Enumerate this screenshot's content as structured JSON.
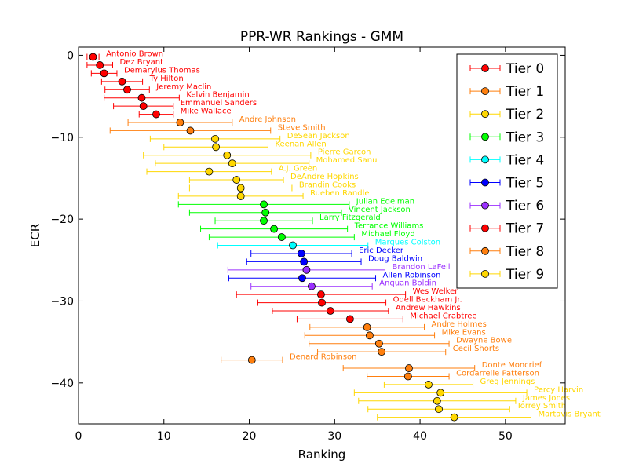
{
  "chart_data": {
    "type": "scatter",
    "title": "PPR-WR Rankings - GMM",
    "xlabel": "Ranking",
    "ylabel": "ECR",
    "xlim": [
      0,
      57
    ],
    "ylim": [
      -45,
      1
    ],
    "x_ticks": [
      0,
      10,
      20,
      30,
      40,
      50
    ],
    "x_tick_labels": [
      "0",
      "10",
      "20",
      "30",
      "40",
      "50"
    ],
    "y_ticks": [
      0,
      -10,
      -20,
      -30,
      -40
    ],
    "y_tick_labels": [
      "0",
      "−10",
      "−20",
      "−30",
      "−40"
    ],
    "grid": false,
    "legend_position": "top-right",
    "tiers": [
      {
        "name": "Tier 0",
        "color": "#ff0000"
      },
      {
        "name": "Tier 1",
        "color": "#ff7f0e"
      },
      {
        "name": "Tier 2",
        "color": "#ffd700"
      },
      {
        "name": "Tier 3",
        "color": "#00ff00"
      },
      {
        "name": "Tier 4",
        "color": "#00ffff"
      },
      {
        "name": "Tier 5",
        "color": "#0000ff"
      },
      {
        "name": "Tier 6",
        "color": "#9b30ff"
      },
      {
        "name": "Tier 7",
        "color": "#ff0000"
      },
      {
        "name": "Tier 8",
        "color": "#ff7f0e"
      },
      {
        "name": "Tier 9",
        "color": "#ffd700"
      }
    ],
    "players": [
      {
        "name": "Antonio Brown",
        "tier": 0,
        "x": 1.7,
        "xmin": 1.0,
        "xmax": 2.4,
        "y": -0.2
      },
      {
        "name": "Dez Bryant",
        "tier": 0,
        "x": 2.5,
        "xmin": 1.0,
        "xmax": 4.0,
        "y": -1.2
      },
      {
        "name": "Demaryius Thomas",
        "tier": 0,
        "x": 3.0,
        "xmin": 1.5,
        "xmax": 4.5,
        "y": -2.2
      },
      {
        "name": "Ty Hilton",
        "tier": 0,
        "x": 5.1,
        "xmin": 2.7,
        "xmax": 7.5,
        "y": -3.2
      },
      {
        "name": "Jeremy Maclin",
        "tier": 0,
        "x": 5.7,
        "xmin": 3.1,
        "xmax": 8.3,
        "y": -4.2
      },
      {
        "name": "Kelvin Benjamin",
        "tier": 0,
        "x": 7.4,
        "xmin": 3.0,
        "xmax": 11.8,
        "y": -5.2
      },
      {
        "name": "Emmanuel Sanders",
        "tier": 0,
        "x": 7.6,
        "xmin": 4.1,
        "xmax": 11.1,
        "y": -6.2
      },
      {
        "name": "Mike Wallace",
        "tier": 0,
        "x": 9.1,
        "xmin": 7.1,
        "xmax": 11.1,
        "y": -7.2
      },
      {
        "name": "Andre Johnson",
        "tier": 1,
        "x": 11.9,
        "xmin": 5.8,
        "xmax": 18.0,
        "y": -8.2
      },
      {
        "name": "Steve Smith",
        "tier": 1,
        "x": 13.1,
        "xmin": 3.7,
        "xmax": 22.5,
        "y": -9.2
      },
      {
        "name": "DeSean Jackson",
        "tier": 2,
        "x": 16.0,
        "xmin": 8.4,
        "xmax": 23.6,
        "y": -10.2
      },
      {
        "name": "Keenan Allen",
        "tier": 2,
        "x": 16.1,
        "xmin": 10.0,
        "xmax": 22.2,
        "y": -11.2
      },
      {
        "name": "Pierre Garcon",
        "tier": 2,
        "x": 17.4,
        "xmin": 7.6,
        "xmax": 27.2,
        "y": -12.2
      },
      {
        "name": "Mohamed Sanu",
        "tier": 2,
        "x": 18.0,
        "xmin": 9.0,
        "xmax": 27.0,
        "y": -13.2
      },
      {
        "name": "A.J. Green",
        "tier": 2,
        "x": 15.3,
        "xmin": 8.0,
        "xmax": 22.6,
        "y": -14.2
      },
      {
        "name": "DeAndre Hopkins",
        "tier": 2,
        "x": 18.5,
        "xmin": 13.0,
        "xmax": 24.0,
        "y": -15.2
      },
      {
        "name": "Brandin Cooks",
        "tier": 2,
        "x": 19.0,
        "xmin": 13.0,
        "xmax": 25.0,
        "y": -16.2
      },
      {
        "name": "Rueben Randle",
        "tier": 2,
        "x": 19.0,
        "xmin": 11.7,
        "xmax": 26.3,
        "y": -17.2
      },
      {
        "name": "Julian Edelman",
        "tier": 3,
        "x": 21.7,
        "xmin": 11.7,
        "xmax": 31.7,
        "y": -18.2
      },
      {
        "name": "Vincent Jackson",
        "tier": 3,
        "x": 21.9,
        "xmin": 13.0,
        "xmax": 30.8,
        "y": -19.2
      },
      {
        "name": "Larry Fitzgerald",
        "tier": 3,
        "x": 21.7,
        "xmin": 16.0,
        "xmax": 27.4,
        "y": -20.2
      },
      {
        "name": "Terrance Williams",
        "tier": 3,
        "x": 22.9,
        "xmin": 14.3,
        "xmax": 31.5,
        "y": -21.2
      },
      {
        "name": "Michael Floyd",
        "tier": 3,
        "x": 23.8,
        "xmin": 15.3,
        "xmax": 32.3,
        "y": -22.2
      },
      {
        "name": "Marques Colston",
        "tier": 4,
        "x": 25.1,
        "xmin": 16.3,
        "xmax": 33.9,
        "y": -23.2
      },
      {
        "name": "Eric Decker",
        "tier": 5,
        "x": 26.1,
        "xmin": 20.2,
        "xmax": 32.0,
        "y": -24.2
      },
      {
        "name": "Doug Baldwin",
        "tier": 5,
        "x": 26.4,
        "xmin": 19.7,
        "xmax": 33.1,
        "y": -25.2
      },
      {
        "name": "Brandon LaFell",
        "tier": 6,
        "x": 26.7,
        "xmin": 17.5,
        "xmax": 35.9,
        "y": -26.2
      },
      {
        "name": "Allen Robinson",
        "tier": 5,
        "x": 26.2,
        "xmin": 17.6,
        "xmax": 34.8,
        "y": -27.2
      },
      {
        "name": "Anquan Boldin",
        "tier": 6,
        "x": 27.3,
        "xmin": 20.2,
        "xmax": 34.4,
        "y": -28.2
      },
      {
        "name": "Wes Welker",
        "tier": 7,
        "x": 28.4,
        "xmin": 18.5,
        "xmax": 38.3,
        "y": -29.2
      },
      {
        "name": "Odell Beckham Jr.",
        "tier": 7,
        "x": 28.5,
        "xmin": 21.0,
        "xmax": 36.0,
        "y": -30.2
      },
      {
        "name": "Andrew Hawkins",
        "tier": 7,
        "x": 29.5,
        "xmin": 22.7,
        "xmax": 36.3,
        "y": -31.2
      },
      {
        "name": "Michael Crabtree",
        "tier": 7,
        "x": 31.8,
        "xmin": 25.6,
        "xmax": 38.0,
        "y": -32.2
      },
      {
        "name": "Andre Holmes",
        "tier": 8,
        "x": 33.8,
        "xmin": 27.1,
        "xmax": 40.5,
        "y": -33.2
      },
      {
        "name": "Mike Evans",
        "tier": 8,
        "x": 34.1,
        "xmin": 26.5,
        "xmax": 41.7,
        "y": -34.2
      },
      {
        "name": "Dwayne Bowe",
        "tier": 8,
        "x": 35.2,
        "xmin": 27.0,
        "xmax": 43.4,
        "y": -35.2
      },
      {
        "name": "Cecil Shorts",
        "tier": 8,
        "x": 35.5,
        "xmin": 28.0,
        "xmax": 43.0,
        "y": -36.2
      },
      {
        "name": "Denard Robinson",
        "tier": 8,
        "x": 20.3,
        "xmin": 16.7,
        "xmax": 23.9,
        "y": -37.2
      },
      {
        "name": "Donte Moncrief",
        "tier": 8,
        "x": 38.7,
        "xmin": 31.0,
        "xmax": 46.4,
        "y": -38.2
      },
      {
        "name": "Cordarrelle Patterson",
        "tier": 8,
        "x": 38.6,
        "xmin": 33.8,
        "xmax": 43.4,
        "y": -39.2
      },
      {
        "name": "Greg Jennings",
        "tier": 9,
        "x": 41.0,
        "xmin": 35.8,
        "xmax": 46.2,
        "y": -40.2
      },
      {
        "name": "Percy Harvin",
        "tier": 9,
        "x": 42.4,
        "xmin": 32.3,
        "xmax": 52.5,
        "y": -41.2
      },
      {
        "name": "James Jones",
        "tier": 9,
        "x": 42.0,
        "xmin": 32.8,
        "xmax": 51.2,
        "y": -42.2
      },
      {
        "name": "Torrey Smith",
        "tier": 9,
        "x": 42.2,
        "xmin": 33.9,
        "xmax": 50.5,
        "y": -43.2
      },
      {
        "name": "Martavis Bryant",
        "tier": 9,
        "x": 44.0,
        "xmin": 35.0,
        "xmax": 53.0,
        "y": -44.2
      }
    ]
  }
}
